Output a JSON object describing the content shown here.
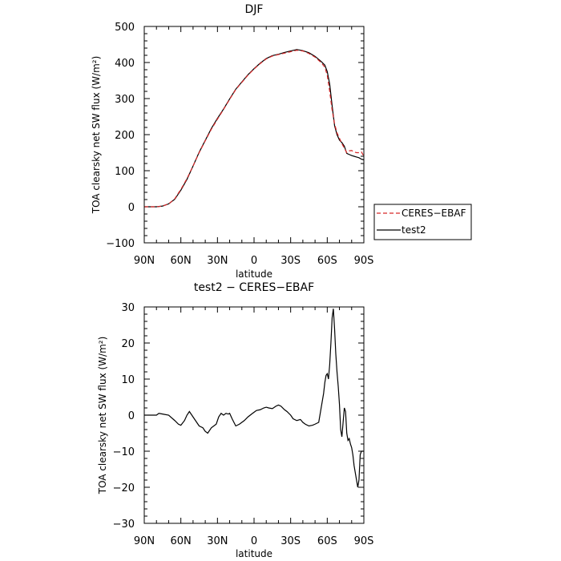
{
  "chart_data": [
    {
      "type": "line",
      "title": "DJF",
      "xlabel": "latitude",
      "ylabel": "TOA clearsky net SW flux (W/m²)",
      "xlim": [
        90,
        -90
      ],
      "ylim": [
        -100,
        500
      ],
      "x_ticks": [
        90,
        60,
        30,
        0,
        -30,
        -60,
        -90
      ],
      "x_tick_labels": [
        "90N",
        "60N",
        "30N",
        "0",
        "30S",
        "60S",
        "90S"
      ],
      "y_ticks": [
        -100,
        0,
        100,
        200,
        300,
        400,
        500
      ],
      "y_tick_labels": [
        "−100",
        "0",
        "100",
        "200",
        "300",
        "400",
        "500"
      ],
      "legend_position": "right",
      "series": [
        {
          "name": "CERES−EBAF",
          "color": "#d62728",
          "dash": "dashed",
          "x": [
            90,
            80,
            75,
            70,
            65,
            62,
            60,
            55,
            50,
            45,
            40,
            35,
            30,
            25,
            20,
            15,
            10,
            5,
            0,
            -5,
            -10,
            -15,
            -20,
            -25,
            -30,
            -35,
            -40,
            -45,
            -50,
            -55,
            -58,
            -60,
            -62,
            -64,
            -66,
            -68,
            -70,
            -72,
            -74,
            -76,
            -78,
            -80,
            -82,
            -84,
            -86,
            -88,
            -90
          ],
          "y": [
            0,
            0,
            2,
            8,
            22,
            38,
            48,
            78,
            113,
            150,
            183,
            215,
            243,
            270,
            298,
            325,
            345,
            365,
            382,
            397,
            410,
            418,
            422,
            426,
            430,
            434,
            432,
            425,
            415,
            400,
            387,
            365,
            320,
            268,
            230,
            205,
            190,
            175,
            163,
            150,
            155,
            156,
            152,
            150,
            150,
            152,
            140
          ]
        },
        {
          "name": "test2",
          "color": "#000000",
          "dash": "solid",
          "x": [
            90,
            80,
            75,
            70,
            65,
            62,
            60,
            55,
            50,
            45,
            40,
            35,
            30,
            25,
            20,
            15,
            10,
            5,
            0,
            -5,
            -10,
            -15,
            -20,
            -25,
            -30,
            -35,
            -40,
            -45,
            -50,
            -55,
            -58,
            -60,
            -62,
            -64,
            -66,
            -68,
            -70,
            -72,
            -74,
            -76,
            -78,
            -80,
            -82,
            -84,
            -86,
            -88,
            -90
          ],
          "y": [
            0,
            0,
            2,
            8,
            21,
            36,
            46,
            76,
            113,
            151,
            184,
            217,
            245,
            271,
            299,
            326,
            346,
            366,
            383,
            398,
            411,
            419,
            423,
            428,
            432,
            436,
            433,
            427,
            417,
            403,
            393,
            375,
            340,
            280,
            225,
            200,
            185,
            178,
            168,
            148,
            145,
            142,
            140,
            138,
            136,
            132,
            130
          ]
        }
      ]
    },
    {
      "type": "line",
      "title": "test2 − CERES−EBAF",
      "xlabel": "latitude",
      "ylabel": "TOA clearsky net SW flux (W/m²)",
      "xlim": [
        90,
        -90
      ],
      "ylim": [
        -30,
        30
      ],
      "x_ticks": [
        90,
        60,
        30,
        0,
        -30,
        -60,
        -90
      ],
      "x_tick_labels": [
        "90N",
        "60N",
        "30N",
        "0",
        "30S",
        "60S",
        "90S"
      ],
      "y_ticks": [
        -30,
        -20,
        -10,
        0,
        10,
        20,
        30
      ],
      "y_tick_labels": [
        "−30",
        "−20",
        "−10",
        "0",
        "10",
        "20",
        "30"
      ],
      "series": [
        {
          "color": "#000000",
          "dash": "solid",
          "x": [
            90,
            80,
            78,
            75,
            70,
            65,
            62,
            60,
            57,
            55,
            53,
            50,
            48,
            45,
            42,
            40,
            38,
            35,
            33,
            31,
            29,
            27,
            25,
            23,
            21,
            20,
            18,
            15,
            12,
            10,
            8,
            5,
            2,
            0,
            -2,
            -5,
            -8,
            -10,
            -12,
            -15,
            -18,
            -20,
            -22,
            -25,
            -27,
            -30,
            -32,
            -35,
            -38,
            -40,
            -42,
            -45,
            -48,
            -50,
            -53,
            -55,
            -57,
            -58,
            -59,
            -60,
            -61,
            -62,
            -63,
            -64,
            -65,
            -66,
            -67,
            -68,
            -69,
            -70,
            -71,
            -72,
            -73,
            -74,
            -75,
            -76,
            -77,
            -78,
            -79,
            -80,
            -81,
            -82,
            -83,
            -84,
            -85,
            -86,
            -87,
            -88,
            -89,
            -90
          ],
          "y": [
            0,
            0,
            0.5,
            0.3,
            0,
            -1.5,
            -2.5,
            -2.8,
            -1.5,
            0,
            1,
            -0.5,
            -1.5,
            -3,
            -3.5,
            -4.5,
            -5,
            -3.5,
            -3,
            -2.5,
            -0.5,
            0.5,
            0,
            0.5,
            0.3,
            0.5,
            -1,
            -3,
            -2.5,
            -2,
            -1.5,
            -0.5,
            0.3,
            0.8,
            1.3,
            1.5,
            2,
            2.2,
            2,
            1.8,
            2.5,
            2.8,
            2.5,
            1.5,
            1,
            0,
            -1,
            -1.5,
            -1.2,
            -2,
            -2.5,
            -3,
            -2.8,
            -2.5,
            -2,
            2,
            6,
            9,
            11,
            11.5,
            10,
            14,
            20,
            27,
            29.5,
            24,
            17,
            12,
            8,
            3,
            -4,
            -6,
            -2,
            2,
            1,
            -5,
            -7,
            -6.5,
            -8,
            -9,
            -11,
            -14,
            -16,
            -18,
            -20,
            -18,
            -11,
            -10,
            -10,
            -10
          ]
        }
      ]
    }
  ]
}
